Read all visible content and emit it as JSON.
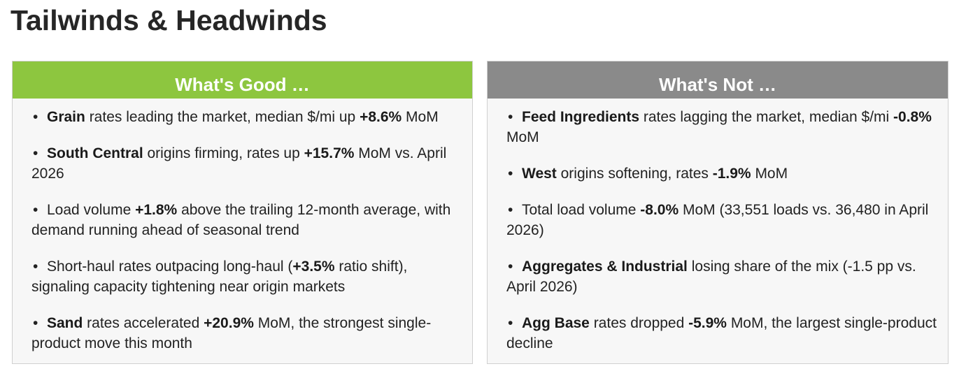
{
  "title": "Tailwinds & Headwinds",
  "good": {
    "header": "What's Good …",
    "items": [
      {
        "b1": "Grain",
        "t1": " rates leading the market, median $/mi up ",
        "b2": "+8.6%",
        "t2": " MoM"
      },
      {
        "b1": "South Central",
        "t1": " origins firming, rates up ",
        "b2": "+15.7%",
        "t2": " MoM vs. April 2026"
      },
      {
        "t0": "Load volume ",
        "b2": "+1.8%",
        "t2": " above the trailing 12-month average, with demand running ahead of seasonal trend"
      },
      {
        "t0": "Short-haul rates outpacing long-haul (",
        "b2": "+3.5%",
        "t2": " ratio shift), signaling capacity tightening near origin markets"
      },
      {
        "b1": "Sand",
        "t1": " rates accelerated ",
        "b2": "+20.9%",
        "t2": " MoM, the strongest single-product move this month"
      }
    ]
  },
  "not": {
    "header": "What's Not …",
    "items": [
      {
        "b1": "Feed Ingredients",
        "t1": " rates lagging the market, median $/mi ",
        "b2": "-0.8%",
        "t2": " MoM"
      },
      {
        "b1": "West",
        "t1": " origins softening, rates ",
        "b2": "-1.9%",
        "t2": " MoM"
      },
      {
        "t0": "Total load volume ",
        "b2": "-8.0%",
        "t2": " MoM (33,551 loads vs. 36,480 in April 2026)"
      },
      {
        "b1": "Aggregates & Industrial",
        "t1": " losing share of the mix (-1.5 pp vs. April 2026)"
      },
      {
        "b1": "Agg Base",
        "t1": " rates dropped ",
        "b2": "-5.9%",
        "t2": " MoM, the largest single-product decline"
      }
    ]
  }
}
